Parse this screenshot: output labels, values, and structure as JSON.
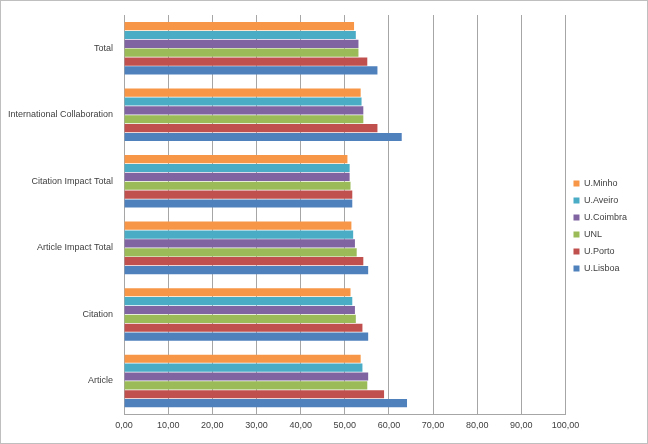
{
  "chart_data": {
    "type": "bar",
    "orientation": "horizontal",
    "grid": true,
    "legend": "right",
    "categories": [
      "Total",
      "International Collaboration",
      "Citation Impact Total",
      "Article Impact Total",
      "Citation",
      "Article"
    ],
    "series": [
      {
        "name": "U.Minho",
        "color": "#f79646",
        "values": [
          52.1,
          53.6,
          50.6,
          51.5,
          51.3,
          53.6
        ]
      },
      {
        "name": "U.Aveiro",
        "color": "#4bacc6",
        "values": [
          52.5,
          53.8,
          51.1,
          51.9,
          51.7,
          54.0
        ]
      },
      {
        "name": "U.Coimbra",
        "color": "#8064a2",
        "values": [
          53.1,
          54.2,
          51.1,
          52.3,
          52.3,
          55.3
        ]
      },
      {
        "name": "UNL",
        "color": "#9bbb59",
        "values": [
          53.1,
          54.2,
          51.3,
          52.7,
          52.5,
          55.1
        ]
      },
      {
        "name": "U.Porto",
        "color": "#c0504d",
        "values": [
          55.1,
          57.4,
          51.7,
          54.2,
          54.0,
          58.9
        ]
      },
      {
        "name": "U.Lisboa",
        "color": "#4f81bd",
        "values": [
          57.4,
          62.9,
          51.7,
          55.3,
          55.3,
          64.1
        ]
      }
    ],
    "xlim": [
      0,
      100
    ],
    "xticks": [
      {
        "value": 0,
        "label": "0,00"
      },
      {
        "value": 10,
        "label": "10,00"
      },
      {
        "value": 20,
        "label": "20,00"
      },
      {
        "value": 30,
        "label": "30,00"
      },
      {
        "value": 40,
        "label": "40,00"
      },
      {
        "value": 50,
        "label": "50,00"
      },
      {
        "value": 60,
        "label": "60,00"
      },
      {
        "value": 70,
        "label": "70,00"
      },
      {
        "value": 80,
        "label": "80,00"
      },
      {
        "value": 90,
        "label": "90,00"
      },
      {
        "value": 100,
        "label": "100,00"
      }
    ]
  }
}
